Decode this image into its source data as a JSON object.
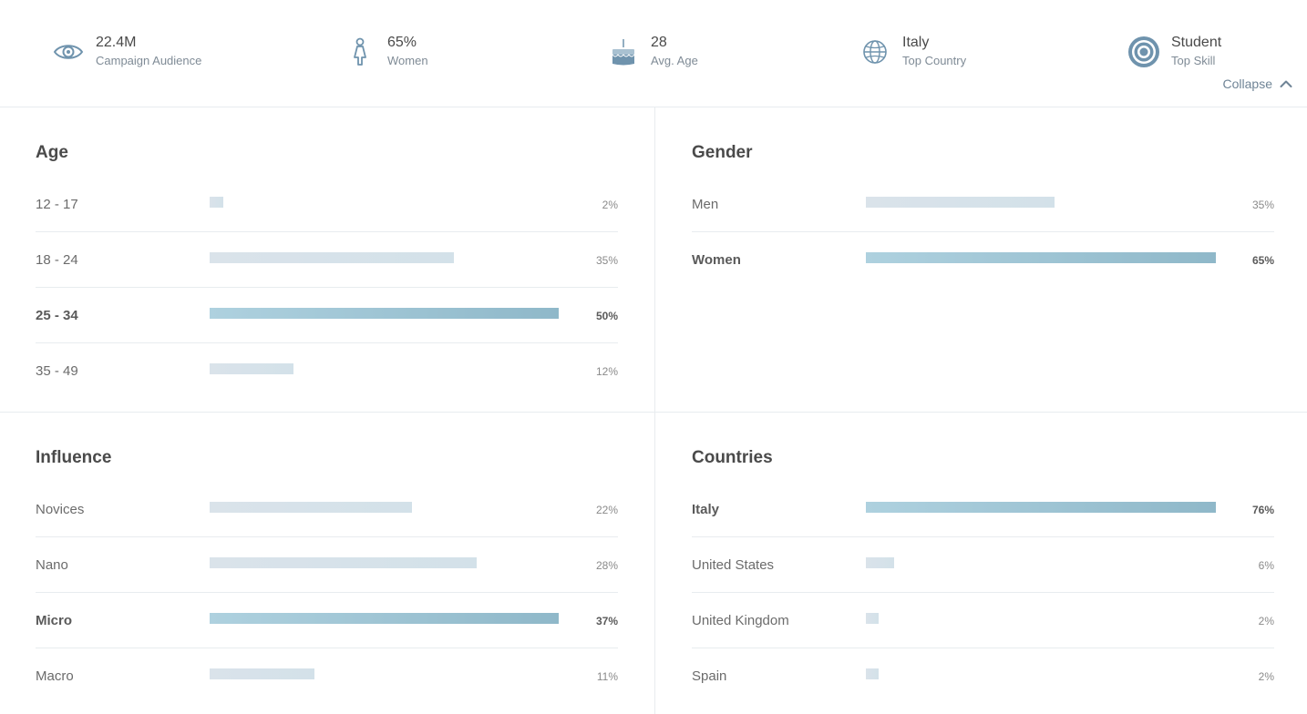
{
  "summary": {
    "stats": [
      {
        "value": "22.4M",
        "label": "Campaign Audience",
        "icon": "eye-icon"
      },
      {
        "value": "65%",
        "label": "Women",
        "icon": "woman-icon"
      },
      {
        "value": "28",
        "label": "Avg. Age",
        "icon": "birthday-cake-icon"
      },
      {
        "value": "Italy",
        "label": "Top Country",
        "icon": "globe-icon"
      },
      {
        "value": "Student",
        "label": "Top Skill",
        "icon": "target-icon"
      }
    ],
    "collapse_label": "Collapse"
  },
  "colors": {
    "bar_default": "#d6e2ea",
    "bar_highlight": "#9cc4d4",
    "icon": "#6f93ad",
    "divider": "#e8ecef"
  },
  "panels": {
    "age": {
      "title": "Age",
      "rows": [
        {
          "label": "12 - 17",
          "value_text": "2%",
          "fraction": 0.04,
          "highlight": false
        },
        {
          "label": "18 - 24",
          "value_text": "35%",
          "fraction": 0.7,
          "highlight": false
        },
        {
          "label": "25 - 34",
          "value_text": "50%",
          "fraction": 1.0,
          "highlight": true
        },
        {
          "label": "35 - 49",
          "value_text": "12%",
          "fraction": 0.24,
          "highlight": false
        }
      ]
    },
    "gender": {
      "title": "Gender",
      "rows": [
        {
          "label": "Men",
          "value_text": "35%",
          "fraction": 0.54,
          "highlight": false
        },
        {
          "label": "Women",
          "value_text": "65%",
          "fraction": 1.0,
          "highlight": true
        }
      ]
    },
    "influence": {
      "title": "Influence",
      "rows": [
        {
          "label": "Novices",
          "value_text": "22%",
          "fraction": 0.58,
          "highlight": false
        },
        {
          "label": "Nano",
          "value_text": "28%",
          "fraction": 0.765,
          "highlight": false
        },
        {
          "label": "Micro",
          "value_text": "37%",
          "fraction": 1.0,
          "highlight": true
        },
        {
          "label": "Macro",
          "value_text": "11%",
          "fraction": 0.3,
          "highlight": false
        }
      ]
    },
    "countries": {
      "title": "Countries",
      "rows": [
        {
          "label": "Italy",
          "value_text": "76%",
          "fraction": 1.0,
          "highlight": true
        },
        {
          "label": "United States",
          "value_text": "6%",
          "fraction": 0.08,
          "highlight": false
        },
        {
          "label": "United Kingdom",
          "value_text": "2%",
          "fraction": 0.03,
          "highlight": false
        },
        {
          "label": "Spain",
          "value_text": "2%",
          "fraction": 0.03,
          "highlight": false
        }
      ]
    }
  }
}
